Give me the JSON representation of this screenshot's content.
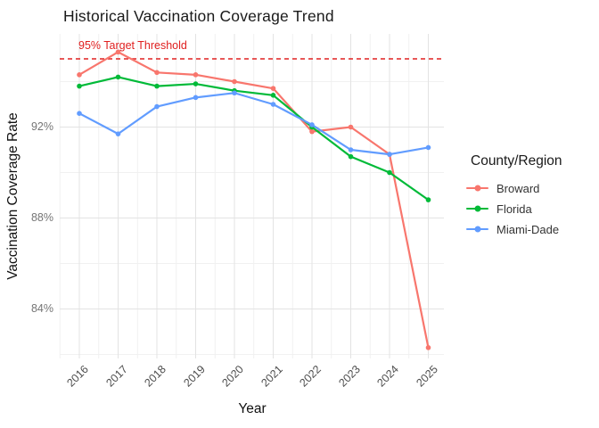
{
  "chart_data": {
    "type": "line",
    "title": "Historical Vaccination Coverage Trend",
    "xlabel": "Year",
    "ylabel": "Vaccination Coverage Rate",
    "x": [
      2016,
      2017,
      2018,
      2019,
      2020,
      2021,
      2022,
      2023,
      2024,
      2025
    ],
    "series": [
      {
        "name": "Broward",
        "color": "#F8766D",
        "values": [
          94.3,
          95.3,
          94.4,
          94.3,
          94.0,
          93.7,
          91.8,
          92.0,
          90.8,
          82.3
        ]
      },
      {
        "name": "Florida",
        "color": "#00BA38",
        "values": [
          93.8,
          94.2,
          93.8,
          93.9,
          93.6,
          93.4,
          92.0,
          90.7,
          90.0,
          88.8
        ]
      },
      {
        "name": "Miami-Dade",
        "color": "#619CFF",
        "values": [
          92.6,
          91.7,
          92.9,
          93.3,
          93.5,
          93.0,
          92.1,
          91.0,
          90.8,
          91.1
        ]
      }
    ],
    "y_ticks": [
      {
        "value": 84,
        "label": "84%"
      },
      {
        "value": 88,
        "label": "88%"
      },
      {
        "value": 92,
        "label": "92%"
      }
    ],
    "y_minor_gridlines": [
      82,
      86,
      90,
      94
    ],
    "ylim": [
      81.9,
      96.1
    ],
    "threshold": {
      "value": 95,
      "label": "95% Target Threshold",
      "color": "#E02020"
    },
    "legend": {
      "title": "County/Region",
      "position": "right"
    },
    "grid": true
  }
}
